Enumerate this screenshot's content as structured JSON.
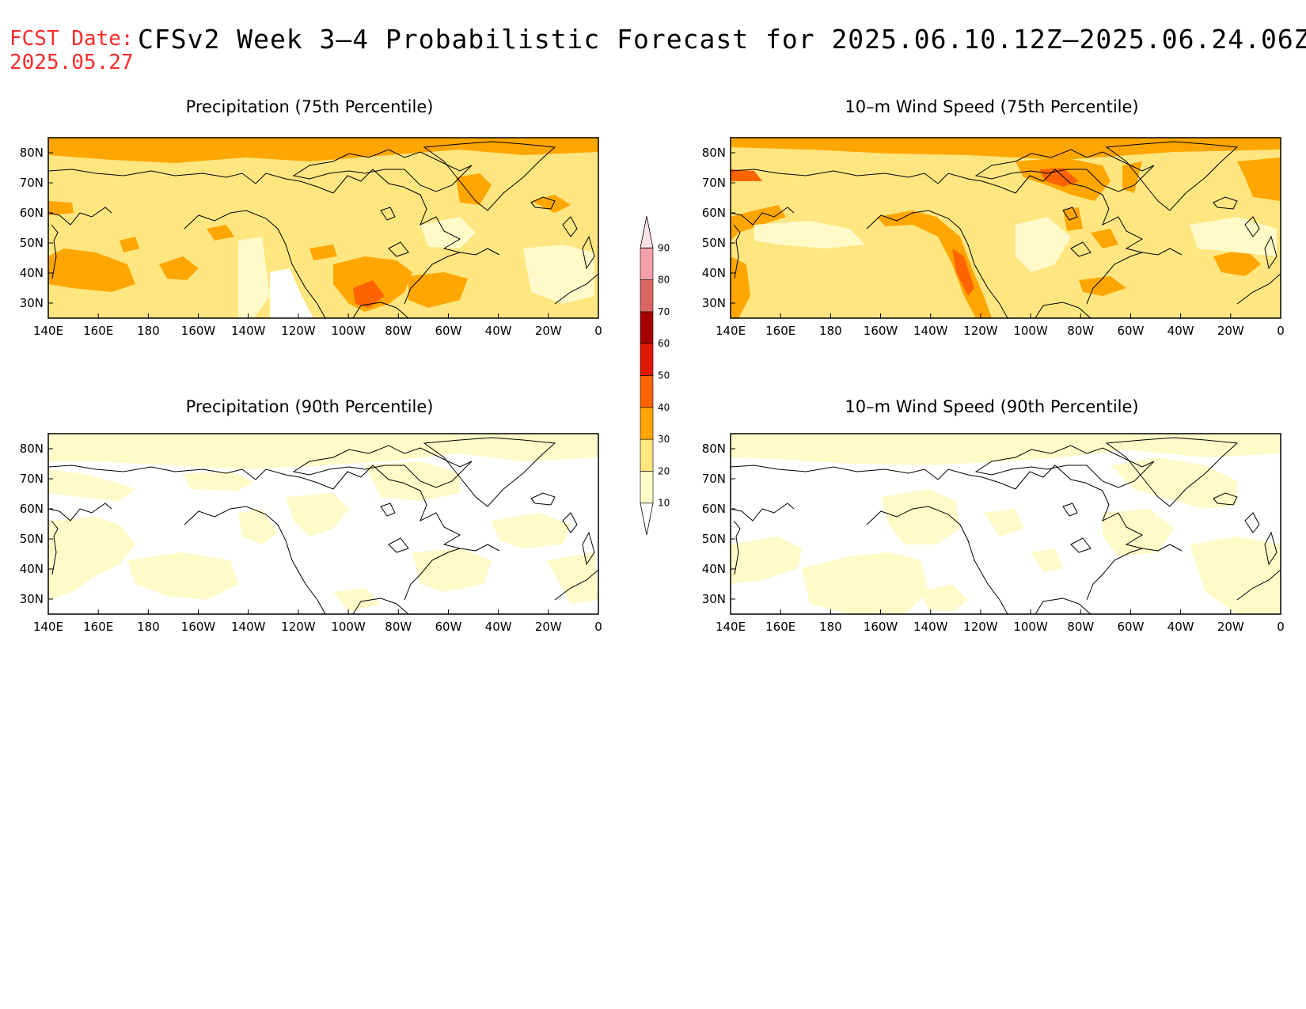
{
  "header": {
    "fcst_label": "FCST Date:",
    "fcst_date": "2025.05.27",
    "title": "CFSv2 Week 3–4 Probabilistic Forecast for 2025.06.10.12Z–2025.06.24.06Z"
  },
  "axes": {
    "lon_labels": [
      "140E",
      "160E",
      "180",
      "160W",
      "140W",
      "120W",
      "100W",
      "80W",
      "60W",
      "40W",
      "20W",
      "0"
    ],
    "lat_labels": [
      "80N",
      "70N",
      "60N",
      "50N",
      "40N",
      "30N"
    ],
    "lon_range": [
      140,
      360
    ],
    "lat_range": [
      25,
      85
    ]
  },
  "panels": [
    {
      "id": "precip-75",
      "title": "Precipitation (75th Percentile)"
    },
    {
      "id": "wind-75",
      "title": "10–m Wind Speed (75th Percentile)"
    },
    {
      "id": "precip-90",
      "title": "Precipitation (90th Percentile)"
    },
    {
      "id": "wind-90",
      "title": "10–m Wind Speed (90th Percentile)"
    }
  ],
  "colorbar": {
    "levels": [
      "10",
      "20",
      "30",
      "40",
      "50",
      "60",
      "70",
      "80",
      "90"
    ],
    "colors": [
      "#fffac8",
      "#ffe680",
      "#ffa600",
      "#ff6400",
      "#e11800",
      "#a50000",
      "#dc6464",
      "#f5a0a8",
      "#fde0e4"
    ]
  },
  "colors": {
    "c10": "#fffac8",
    "c20": "#ffe680",
    "c30": "#ffa600",
    "c40": "#ff6400",
    "c50": "#e11800",
    "fcst_red": "#ff2a2a"
  }
}
